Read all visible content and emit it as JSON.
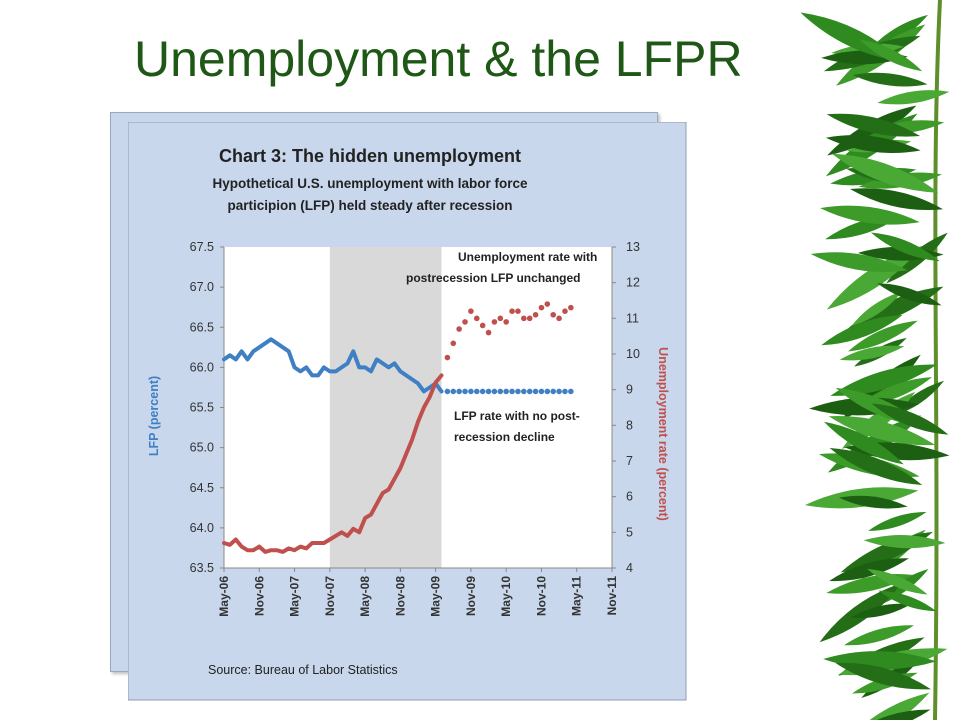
{
  "slide": {
    "title": "Unemployment & the LFPR"
  },
  "colors": {
    "title": "#1f5716",
    "lfp": "#3f7fc4",
    "unemp": "#c0504d",
    "panel": "#c8d7ec",
    "shade": "#d9d9d9",
    "bamboo": "#2f8a1f"
  },
  "chart_data": {
    "type": "line",
    "title": "Chart 3: The  hidden unemployment",
    "subtitle_line1": "Hypothetical U.S. unemployment with labor force",
    "subtitle_line2": "participion  (LFP) held steady after recession",
    "ylabel_left": "LFP (percent)",
    "ylabel_right": "Unemployment rate (percent)",
    "source": "Source: Bureau of Labor Statistics",
    "y_left_lim": [
      63.5,
      67.5
    ],
    "y_right_lim": [
      4,
      13
    ],
    "x_ticks": [
      "May-06",
      "Nov-06",
      "May-07",
      "Nov-07",
      "May-08",
      "Nov-08",
      "May-09",
      "Nov-09",
      "May-10",
      "Nov-10",
      "May-11",
      "Nov-11"
    ],
    "y_left_ticks": [
      "63.5",
      "64.0",
      "64.5",
      "65.0",
      "65.5",
      "66.0",
      "66.5",
      "67.0",
      "67.5"
    ],
    "y_right_ticks": [
      "4",
      "5",
      "6",
      "7",
      "8",
      "9",
      "10",
      "11",
      "12",
      "13"
    ],
    "recession_shade": {
      "start_index": 18,
      "end_index": 37
    },
    "annotations": {
      "unemp_line1": "Unemployment rate with",
      "unemp_line2": "postrecession LFP unchanged",
      "lfp_line1": "LFP rate with no post-",
      "lfp_line2": "recession decline"
    },
    "series": [
      {
        "name": "LFP",
        "axis": "left",
        "style": "solid",
        "start_index": 0,
        "values": [
          66.1,
          66.15,
          66.1,
          66.2,
          66.1,
          66.2,
          66.25,
          66.3,
          66.35,
          66.3,
          66.25,
          66.2,
          66.0,
          65.95,
          66.0,
          65.9,
          65.9,
          66.0,
          65.95,
          65.95,
          66.0,
          66.05,
          66.2,
          66.0,
          66.0,
          65.95,
          66.1,
          66.05,
          66.0,
          66.05,
          65.95,
          65.9,
          65.85,
          65.8,
          65.7,
          65.75,
          65.8,
          65.7
        ]
      },
      {
        "name": "LFP rate with no post-recession decline",
        "axis": "left",
        "style": "dotted",
        "start_index": 38,
        "values": [
          65.7,
          65.7,
          65.7,
          65.7,
          65.7,
          65.7,
          65.7,
          65.7,
          65.7,
          65.7,
          65.7,
          65.7,
          65.7,
          65.7,
          65.7,
          65.7,
          65.7,
          65.7,
          65.7,
          65.7,
          65.7,
          65.7
        ]
      },
      {
        "name": "Unemployment rate",
        "axis": "right",
        "style": "solid",
        "start_index": 0,
        "values": [
          4.7,
          4.65,
          4.8,
          4.6,
          4.5,
          4.5,
          4.6,
          4.45,
          4.5,
          4.5,
          4.45,
          4.55,
          4.5,
          4.6,
          4.55,
          4.7,
          4.7,
          4.7,
          4.8,
          4.9,
          5.0,
          4.9,
          5.1,
          5.0,
          5.4,
          5.5,
          5.8,
          6.1,
          6.2,
          6.5,
          6.8,
          7.2,
          7.6,
          8.1,
          8.5,
          8.8,
          9.2,
          9.4
        ]
      },
      {
        "name": "Unemployment rate with postrecession LFP unchanged",
        "axis": "right",
        "style": "dotted",
        "start_index": 38,
        "values": [
          9.9,
          10.3,
          10.7,
          10.9,
          11.2,
          11.0,
          10.8,
          10.6,
          10.9,
          11.0,
          10.9,
          11.2,
          11.2,
          11.0,
          11.0,
          11.1,
          11.3,
          11.4,
          11.1,
          11.0,
          11.2,
          11.3
        ]
      }
    ]
  }
}
